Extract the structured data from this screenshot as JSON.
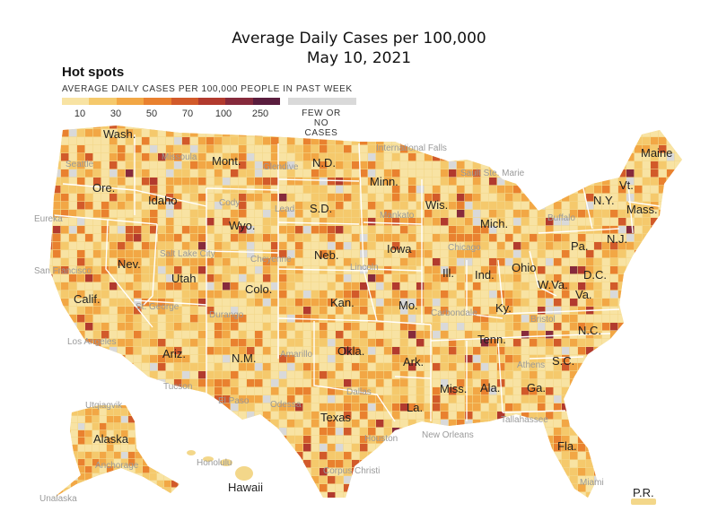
{
  "title": {
    "line1": "Average Daily Cases per 100,000",
    "line2": "May 10, 2021"
  },
  "legend": {
    "heading": "Hot spots",
    "subtitle": "AVERAGE DAILY CASES PER 100,000 PEOPLE IN PAST WEEK",
    "ticks": [
      "10",
      "30",
      "50",
      "70",
      "100",
      "250"
    ],
    "none_line1": "FEW OR NO",
    "none_line2": "CASES",
    "colors": [
      "#f8e3a3",
      "#f5c96c",
      "#f2a745",
      "#e9812f",
      "#d25a2a",
      "#b23a2e",
      "#862a3c",
      "#5a1d3e"
    ],
    "none_color": "#d9d9d9"
  },
  "map": {
    "base_color": "#f3d78a",
    "state_labels": {
      "wash": "Wash.",
      "ore": "Ore.",
      "calif": "Calif.",
      "idaho": "Idaho",
      "nev": "Nev.",
      "utah": "Utah",
      "ariz": "Ariz.",
      "mont": "Mont.",
      "wyo": "Wyo.",
      "colo": "Colo.",
      "nm": "N.M.",
      "nd": "N.D.",
      "sd": "S.D.",
      "neb": "Neb.",
      "kan": "Kan.",
      "okla": "Okla.",
      "texas": "Texas",
      "minn": "Minn.",
      "iowa": "Iowa",
      "mo": "Mo.",
      "ark": "Ark.",
      "la": "La.",
      "wis": "Wis.",
      "ill": "Ill.",
      "mich": "Mich.",
      "ind": "Ind.",
      "ohio": "Ohio",
      "ky": "Ky.",
      "tenn": "Tenn.",
      "miss": "Miss.",
      "ala": "Ala.",
      "ga": "Ga.",
      "fla": "Fla.",
      "sc": "S.C.",
      "nc": "N.C.",
      "va": "Va.",
      "wva": "W.Va.",
      "pa": "Pa.",
      "ny": "N.Y.",
      "nj": "N.J.",
      "dc": "D.C.",
      "vt": "Vt.",
      "mass": "Mass.",
      "maine": "Maine",
      "alaska": "Alaska",
      "hawaii": "Hawaii",
      "pr": "P.R."
    },
    "city_labels": {
      "seattle": "Seattle",
      "eureka": "Eureka",
      "san_francisco": "San Francisco",
      "los_angeles": "Los Angeles",
      "missoula": "Missoula",
      "glendive": "Glendive",
      "cody": "Cody",
      "lead": "Lead",
      "salt_lake_city": "Salt Lake City",
      "cheyenne": "Cheyenne",
      "lincoln": "Lincoln",
      "st_george": "St. George",
      "durango": "Durango",
      "amarillo": "Amarillo",
      "tucson": "Tucson",
      "el_paso": "El Paso",
      "odessa": "Odessa",
      "dallas": "Dallas",
      "houston": "Houston",
      "corpus_christi": "Corpus Christi",
      "new_orleans": "New Orleans",
      "international_falls": "International Falls",
      "sault_ste_marie": "Sault Ste. Marie",
      "mankato": "Mankato",
      "chicago": "Chicago",
      "carbondale": "Carbondale",
      "bristol": "Bristol",
      "athens": "Athens",
      "tallahassee": "Tallahassee",
      "miami": "Miami",
      "buffalo": "Buffalo",
      "utqiagvik": "Utqiagvik",
      "anchorage": "Anchorage",
      "unalaska": "Unalaska",
      "honolulu": "Honolulu"
    }
  }
}
